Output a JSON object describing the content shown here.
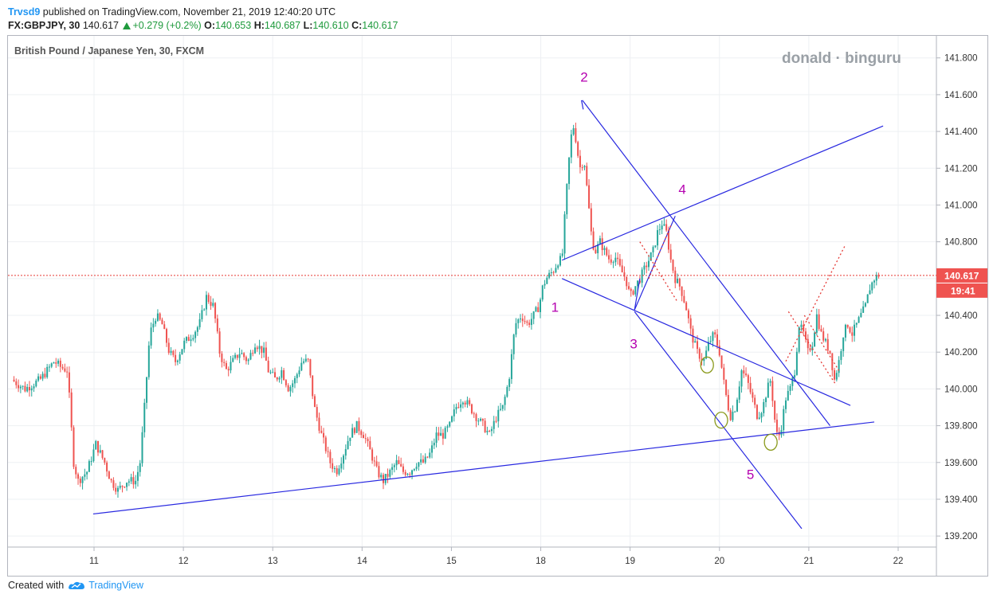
{
  "header": {
    "user": "Trvsd9",
    "published_text": " published on TradingView.com, November 21, 2019 12:40:20 UTC",
    "symbol": "FX:GBPJPY, 30",
    "last": "140.617",
    "change": "+0.279 (+0.2%)",
    "o_label": "O:",
    "o_value": "140.653",
    "h_label": "H:",
    "h_value": "140.687",
    "l_label": "L:",
    "l_value": "140.610",
    "c_label": "C:",
    "c_value": "140.617"
  },
  "footer": {
    "created_with": "Created with",
    "brand": "TradingView"
  },
  "colors": {
    "up": "#26a69a",
    "down": "#ef5350",
    "trend": "#2828e0",
    "dotted": "#e53935",
    "wave": "#b500b0",
    "circle": "#8a9a1b",
    "label_bg": "#ef5350"
  },
  "chart_data": {
    "type": "candlestick",
    "title": "British Pound / Japanese Yen, 30, FXCM",
    "watermark": "donald · binguru",
    "y_ticks": [
      "141.800",
      "141.600",
      "141.400",
      "141.200",
      "141.000",
      "140.800",
      "140.600",
      "140.400",
      "140.200",
      "140.000",
      "139.800",
      "139.600",
      "139.400",
      "139.200"
    ],
    "ylim": [
      139.14,
      141.92
    ],
    "x_ticks": [
      "11",
      "12",
      "13",
      "14",
      "15",
      "18",
      "19",
      "20",
      "21",
      "22"
    ],
    "x_tick_index": [
      9.3,
      19.4,
      29.5,
      39.6,
      49.7,
      59.8,
      69.9,
      80.0,
      90.1,
      100.2
    ],
    "last_price_label": "140.617",
    "countdown_label": "19:41",
    "price_path": [
      [
        0,
        140.05
      ],
      [
        1.5,
        140.0
      ],
      [
        3.2,
        140.05
      ],
      [
        4.8,
        140.15
      ],
      [
        5.5,
        140.12
      ],
      [
        6.3,
        140.1
      ],
      [
        7.0,
        139.6
      ],
      [
        7.5,
        139.5
      ],
      [
        8.5,
        139.55
      ],
      [
        9.5,
        139.7
      ],
      [
        10.5,
        139.6
      ],
      [
        11.2,
        139.5
      ],
      [
        12.0,
        139.45
      ],
      [
        13.0,
        139.5
      ],
      [
        14.0,
        139.5
      ],
      [
        14.5,
        139.6
      ],
      [
        15.0,
        139.9
      ],
      [
        15.6,
        140.3
      ],
      [
        16.3,
        140.4
      ],
      [
        17.0,
        140.35
      ],
      [
        17.8,
        140.2
      ],
      [
        18.5,
        140.15
      ],
      [
        19.5,
        140.25
      ],
      [
        20.5,
        140.3
      ],
      [
        21.2,
        140.35
      ],
      [
        22.0,
        140.5
      ],
      [
        22.8,
        140.45
      ],
      [
        23.5,
        140.2
      ],
      [
        24.2,
        140.1
      ],
      [
        25.0,
        140.15
      ],
      [
        25.8,
        140.2
      ],
      [
        26.7,
        140.15
      ],
      [
        27.5,
        140.25
      ],
      [
        28.5,
        140.2
      ],
      [
        29.0,
        140.1
      ],
      [
        29.8,
        140.05
      ],
      [
        30.5,
        140.1
      ],
      [
        31.3,
        140.0
      ],
      [
        32.0,
        140.05
      ],
      [
        32.8,
        140.15
      ],
      [
        33.5,
        140.15
      ],
      [
        34.2,
        139.9
      ],
      [
        35.0,
        139.75
      ],
      [
        36.0,
        139.6
      ],
      [
        36.7,
        139.55
      ],
      [
        37.5,
        139.65
      ],
      [
        38.2,
        139.75
      ],
      [
        39.0,
        139.8
      ],
      [
        39.8,
        139.75
      ],
      [
        40.6,
        139.65
      ],
      [
        41.3,
        139.55
      ],
      [
        42.0,
        139.5
      ],
      [
        42.8,
        139.55
      ],
      [
        43.5,
        139.6
      ],
      [
        44.2,
        139.55
      ],
      [
        45.0,
        139.55
      ],
      [
        45.8,
        139.6
      ],
      [
        46.6,
        139.6
      ],
      [
        47.3,
        139.65
      ],
      [
        48.0,
        139.75
      ],
      [
        48.8,
        139.75
      ],
      [
        49.5,
        139.8
      ],
      [
        50.2,
        139.9
      ],
      [
        51.0,
        139.95
      ],
      [
        51.8,
        139.9
      ],
      [
        52.5,
        139.85
      ],
      [
        53.3,
        139.8
      ],
      [
        54.0,
        139.75
      ],
      [
        54.8,
        139.85
      ],
      [
        55.5,
        139.9
      ],
      [
        56.2,
        140.05
      ],
      [
        56.9,
        140.35
      ],
      [
        57.6,
        140.4
      ],
      [
        58.3,
        140.35
      ],
      [
        59.0,
        140.4
      ],
      [
        59.6,
        140.45
      ],
      [
        60.0,
        140.55
      ],
      [
        60.4,
        140.6
      ],
      [
        60.8,
        140.62
      ],
      [
        61.3,
        140.65
      ],
      [
        61.8,
        140.7
      ],
      [
        62.2,
        140.7
      ],
      [
        62.6,
        141.0
      ],
      [
        63.0,
        141.25
      ],
      [
        63.4,
        141.45
      ],
      [
        63.8,
        141.35
      ],
      [
        64.2,
        141.2
      ],
      [
        64.7,
        141.25
      ],
      [
        65.2,
        141.0
      ],
      [
        65.6,
        140.8
      ],
      [
        66.0,
        140.75
      ],
      [
        66.5,
        140.8
      ],
      [
        67.0,
        140.75
      ],
      [
        67.6,
        140.7
      ],
      [
        68.2,
        140.72
      ],
      [
        68.8,
        140.65
      ],
      [
        69.4,
        140.6
      ],
      [
        69.9,
        140.5
      ],
      [
        70.4,
        140.55
      ],
      [
        71.0,
        140.6
      ],
      [
        71.5,
        140.65
      ],
      [
        72.0,
        140.7
      ],
      [
        72.5,
        140.75
      ],
      [
        73.0,
        140.85
      ],
      [
        73.5,
        140.9
      ],
      [
        74.0,
        140.85
      ],
      [
        74.5,
        140.7
      ],
      [
        75.0,
        140.6
      ],
      [
        75.6,
        140.55
      ],
      [
        76.2,
        140.45
      ],
      [
        76.8,
        140.3
      ],
      [
        77.5,
        140.2
      ],
      [
        78.2,
        140.15
      ],
      [
        78.8,
        140.25
      ],
      [
        79.4,
        140.3
      ],
      [
        80.0,
        140.2
      ],
      [
        80.6,
        140.0
      ],
      [
        81.2,
        139.85
      ],
      [
        81.8,
        139.9
      ],
      [
        82.5,
        140.1
      ],
      [
        83.1,
        140.05
      ],
      [
        83.7,
        139.95
      ],
      [
        84.3,
        139.85
      ],
      [
        84.9,
        139.9
      ],
      [
        85.4,
        140.0
      ],
      [
        85.8,
        140.05
      ],
      [
        86.2,
        139.85
      ],
      [
        86.6,
        139.72
      ],
      [
        87.0,
        139.8
      ],
      [
        87.5,
        139.95
      ],
      [
        88.0,
        140.0
      ],
      [
        88.5,
        140.1
      ],
      [
        89.0,
        140.35
      ],
      [
        89.5,
        140.3
      ],
      [
        90.0,
        140.2
      ],
      [
        90.5,
        140.25
      ],
      [
        91.0,
        140.4
      ],
      [
        91.5,
        140.3
      ],
      [
        92.0,
        140.25
      ],
      [
        92.5,
        140.2
      ],
      [
        93.0,
        140.05
      ],
      [
        93.5,
        140.15
      ],
      [
        94.0,
        140.3
      ],
      [
        94.5,
        140.35
      ],
      [
        95.0,
        140.3
      ],
      [
        95.5,
        140.35
      ],
      [
        96.0,
        140.4
      ],
      [
        96.5,
        140.45
      ],
      [
        97.0,
        140.55
      ],
      [
        97.5,
        140.6
      ],
      [
        98.0,
        140.62
      ]
    ],
    "annotations": [
      {
        "label": "1",
        "x": 61.4,
        "y": 140.42
      },
      {
        "label": "2",
        "x": 64.7,
        "y": 141.67
      },
      {
        "label": "3",
        "x": 70.3,
        "y": 140.22
      },
      {
        "label": "4",
        "x": 75.8,
        "y": 141.06
      },
      {
        "label": "5",
        "x": 83.5,
        "y": 139.51
      }
    ],
    "trendlines": [
      {
        "name": "lower-support",
        "from": [
          9.2,
          139.32
        ],
        "to": [
          97.5,
          139.82
        ]
      },
      {
        "name": "upper-channel",
        "from": [
          62.2,
          140.7
        ],
        "to": [
          98.5,
          141.43
        ]
      },
      {
        "name": "wave-channel-top",
        "from": [
          64.5,
          141.57
        ],
        "to": [
          92.5,
          139.8
        ]
      },
      {
        "name": "wave-channel-bottom",
        "from": [
          70.4,
          140.42
        ],
        "to": [
          89.3,
          139.24
        ]
      },
      {
        "name": "mid-line",
        "from": [
          62.2,
          140.6
        ],
        "to": [
          94.8,
          139.91
        ]
      },
      {
        "name": "wave-0-2",
        "from": [
          64.4,
          141.57
        ],
        "to": [
          64.6,
          141.52
        ]
      },
      {
        "name": "wave-2-3",
        "from": [
          70.4,
          140.43
        ],
        "to": [
          71.0,
          140.6
        ]
      },
      {
        "name": "wave-3-4",
        "from": [
          70.4,
          140.43
        ],
        "to": [
          75.0,
          140.94
        ]
      }
    ],
    "dotted_lines": [
      {
        "from": [
          71.0,
          140.8
        ],
        "to": [
          75.3,
          140.47
        ]
      },
      {
        "from": [
          72.0,
          140.6
        ],
        "to": [
          74.6,
          140.9
        ]
      },
      {
        "from": [
          87.5,
          140.15
        ],
        "to": [
          94.2,
          140.78
        ]
      },
      {
        "from": [
          87.8,
          140.42
        ],
        "to": [
          93.2,
          140.02
        ]
      },
      {
        "from": [
          89.6,
          140.4
        ],
        "to": [
          93.5,
          140.1
        ]
      }
    ],
    "circles": [
      {
        "x": 78.6,
        "y": 140.13
      },
      {
        "x": 80.2,
        "y": 139.83
      },
      {
        "x": 85.8,
        "y": 139.71
      }
    ],
    "hline_price": 140.617
  }
}
